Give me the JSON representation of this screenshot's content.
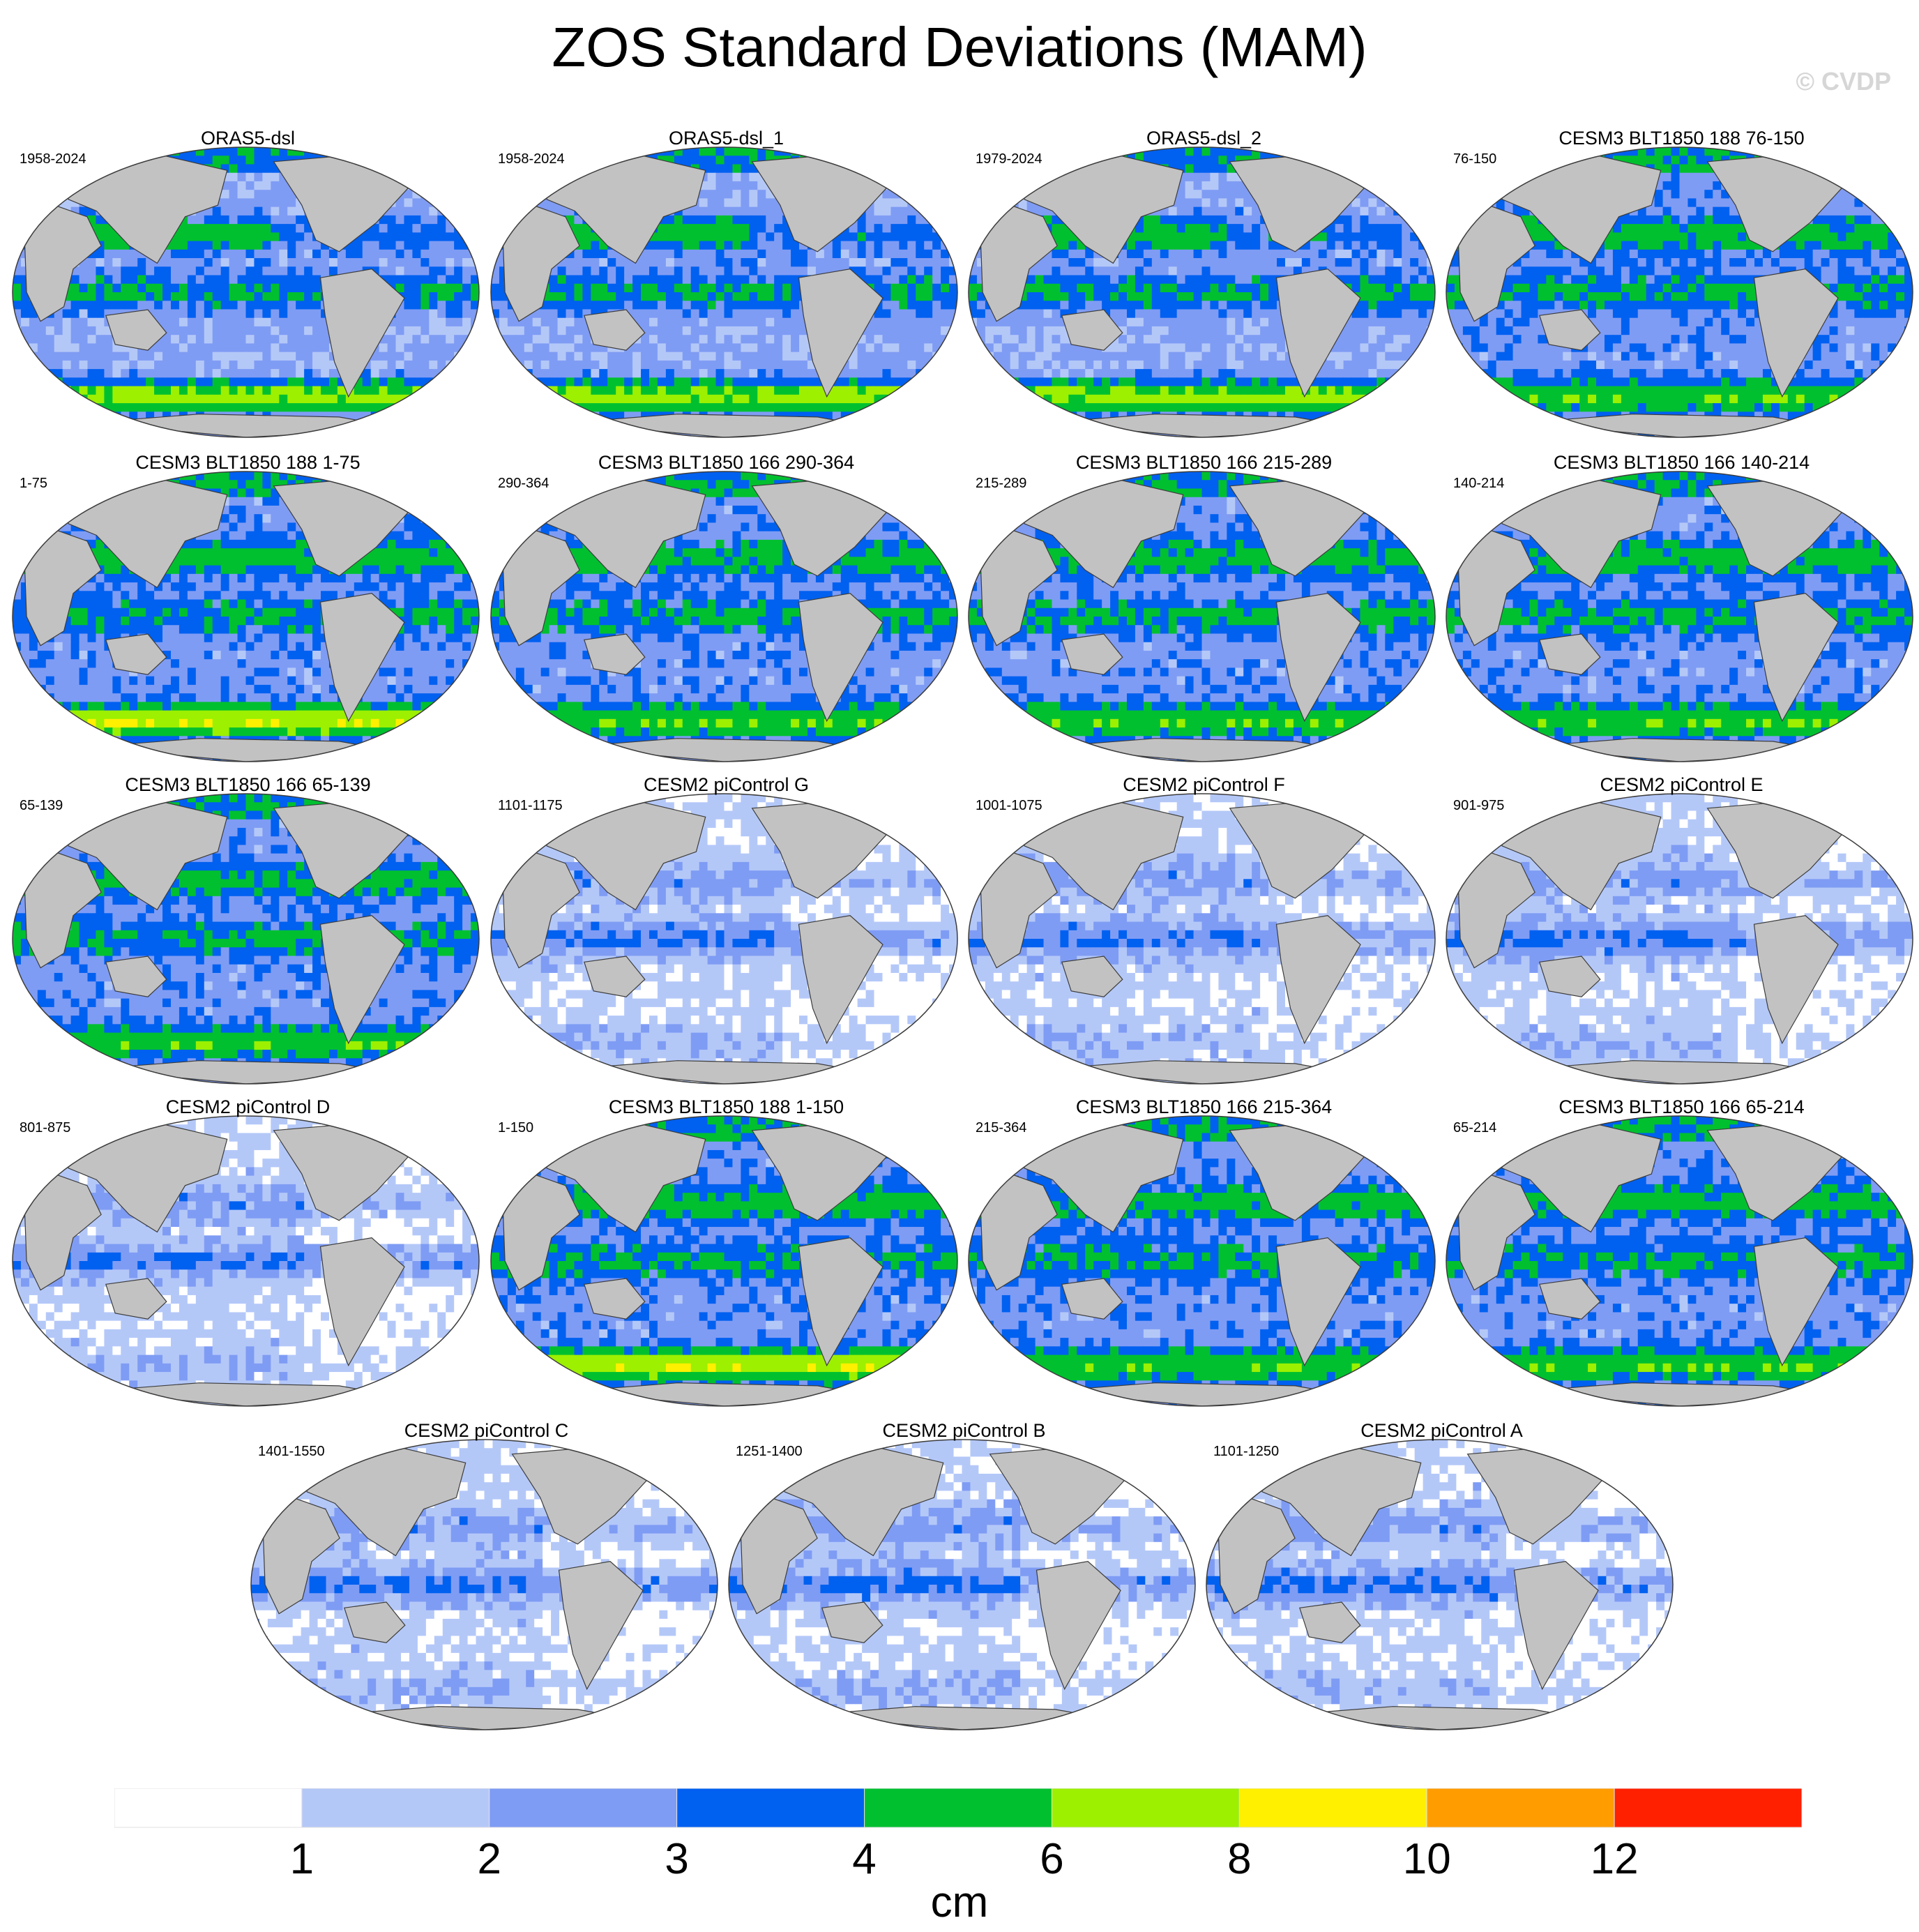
{
  "title": "ZOS Standard Deviations (MAM)",
  "watermark": "© CVDP",
  "panels": [
    {
      "title": "ORAS5-dsl",
      "years": "1958-2024",
      "style": "obs"
    },
    {
      "title": "ORAS5-dsl_1",
      "years": "1958-2024",
      "style": "obs"
    },
    {
      "title": "ORAS5-dsl_2",
      "years": "1979-2024",
      "style": "obs"
    },
    {
      "title": "CESM3 BLT1850 188 76-150",
      "years": "76-150",
      "style": "cesm3"
    },
    {
      "title": "CESM3 BLT1850 188 1-75",
      "years": "1-75",
      "style": "cesm3hot"
    },
    {
      "title": "CESM3 BLT1850 166 290-364",
      "years": "290-364",
      "style": "cesm3"
    },
    {
      "title": "CESM3 BLT1850 166 215-289",
      "years": "215-289",
      "style": "cesm3"
    },
    {
      "title": "CESM3 BLT1850 166 140-214",
      "years": "140-214",
      "style": "cesm3"
    },
    {
      "title": "CESM3 BLT1850 166 65-139",
      "years": "65-139",
      "style": "cesm3"
    },
    {
      "title": "CESM2 piControl G",
      "years": "1101-1175",
      "style": "cesm2"
    },
    {
      "title": "CESM2 piControl F",
      "years": "1001-1075",
      "style": "cesm2"
    },
    {
      "title": "CESM2 piControl E",
      "years": "901-975",
      "style": "cesm2"
    },
    {
      "title": "CESM2 piControl D",
      "years": "801-875",
      "style": "cesm2"
    },
    {
      "title": "CESM3 BLT1850 188 1-150",
      "years": "1-150",
      "style": "cesm3hot"
    },
    {
      "title": "CESM3 BLT1850 166 215-364",
      "years": "215-364",
      "style": "cesm3"
    },
    {
      "title": "CESM3 BLT1850 166 65-214",
      "years": "65-214",
      "style": "cesm3"
    },
    {
      "title": "CESM2 piControl C",
      "years": "1401-1550",
      "style": "cesm2"
    },
    {
      "title": "CESM2 piControl B",
      "years": "1251-1400",
      "style": "cesm2"
    },
    {
      "title": "CESM2 piControl A",
      "years": "1101-1250",
      "style": "cesm2"
    }
  ],
  "colorbar": {
    "colors": [
      "#ffffff",
      "#b4c8f8",
      "#7f9cf4",
      "#0060f0",
      "#00c030",
      "#9cf000",
      "#fff000",
      "#ff9c00",
      "#ff2000"
    ],
    "bounds": [
      "1",
      "2",
      "3",
      "4",
      "6",
      "8",
      "10",
      "12"
    ],
    "unit": "cm"
  },
  "colors": {
    "land": "#c2c2c2",
    "outline": "#3c3c3c"
  }
}
